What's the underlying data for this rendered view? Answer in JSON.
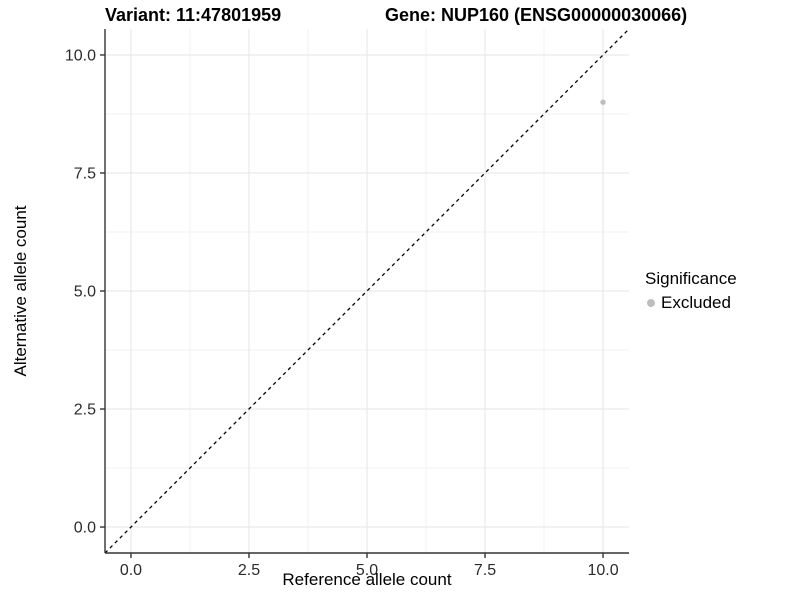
{
  "chart_data": {
    "type": "scatter",
    "title_left": "Variant: 11:47801959",
    "title_right": "Gene: NUP160 (ENSG00000030066)",
    "xlabel": "Reference allele count",
    "ylabel": "Alternative allele count",
    "xlim": [
      -0.55,
      10.55
    ],
    "ylim": [
      -0.55,
      10.55
    ],
    "x_ticks": [
      0,
      2.5,
      5,
      7.5,
      10
    ],
    "x_tick_labels": [
      "0.0",
      "2.5",
      "5.0",
      "7.5",
      "10.0"
    ],
    "y_ticks": [
      0,
      2.5,
      5,
      7.5,
      10
    ],
    "y_tick_labels": [
      "0.0",
      "2.5",
      "5.0",
      "7.5",
      "10.0"
    ],
    "minor_ticks": [
      1.25,
      3.75,
      6.25,
      8.75
    ],
    "grid": "major+minor",
    "series": [
      {
        "name": "Excluded",
        "color": "#bebebe",
        "points": [
          {
            "x": 10,
            "y": 9
          }
        ]
      }
    ],
    "reference_line": {
      "shape": "identity (y = x)",
      "style": "dashed",
      "color": "#000000",
      "from": [
        -0.55,
        -0.55
      ],
      "to": [
        10.55,
        10.55
      ]
    },
    "legend": {
      "title": "Significance",
      "position": "right",
      "items": [
        {
          "label": "Excluded",
          "color": "#bebebe"
        }
      ]
    },
    "colors": {
      "background": "#ffffff",
      "grid_major": "#e5e5e5",
      "grid_minor": "#f2f2f2",
      "axis_line": "#333333",
      "tick_label": "#2b2b2b",
      "point": "#bebebe"
    }
  }
}
